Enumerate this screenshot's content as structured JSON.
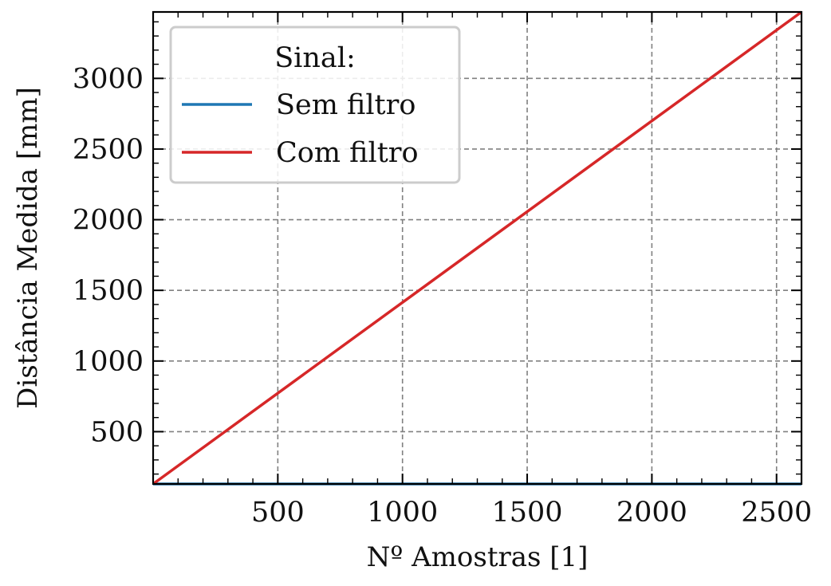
{
  "chart_data": {
    "type": "line",
    "title": "",
    "xlabel": "Nº Amostras [1]",
    "ylabel": "Distância Medida [mm]",
    "xlim": [
      0,
      2600
    ],
    "ylim": [
      130,
      3470
    ],
    "xticks": [
      500,
      1000,
      1500,
      2000,
      2500
    ],
    "yticks": [
      500,
      1000,
      1500,
      2000,
      2500,
      3000
    ],
    "grid": true,
    "legend": {
      "title": "Sinal:",
      "placement": "top-left"
    },
    "series": [
      {
        "name": "Sem filtro",
        "color": "#1f77b4",
        "x": [
          0,
          2600
        ],
        "y": [
          130,
          130
        ]
      },
      {
        "name": "Com filtro",
        "color": "#d62728",
        "x": [
          0,
          2600
        ],
        "y": [
          130,
          3470
        ]
      }
    ]
  }
}
